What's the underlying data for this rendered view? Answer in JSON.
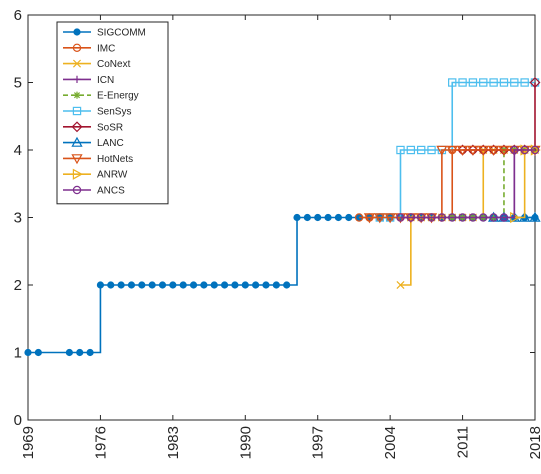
{
  "chart_data": {
    "type": "line",
    "title": "",
    "xlabel": "",
    "ylabel": "",
    "xlim": [
      1969,
      2018
    ],
    "ylim": [
      0,
      6
    ],
    "xticks": [
      "1969",
      "1976",
      "1983",
      "1990",
      "1997",
      "2004",
      "2011",
      "2018"
    ],
    "yticks": [
      "0",
      "1",
      "2",
      "3",
      "4",
      "5",
      "6"
    ],
    "legend_position": "top-left",
    "grid": false,
    "series": [
      {
        "name": "SIGCOMM",
        "color": "#0072BD",
        "marker": "circle",
        "step": true,
        "points": [
          [
            1969,
            1
          ],
          [
            1970,
            1
          ],
          [
            1973,
            1
          ],
          [
            1974,
            1
          ],
          [
            1975,
            1
          ],
          [
            1976,
            2
          ],
          [
            1977,
            2
          ],
          [
            1978,
            2
          ],
          [
            1979,
            2
          ],
          [
            1980,
            2
          ],
          [
            1981,
            2
          ],
          [
            1982,
            2
          ],
          [
            1983,
            2
          ],
          [
            1984,
            2
          ],
          [
            1985,
            2
          ],
          [
            1986,
            2
          ],
          [
            1987,
            2
          ],
          [
            1988,
            2
          ],
          [
            1989,
            2
          ],
          [
            1990,
            2
          ],
          [
            1991,
            2
          ],
          [
            1992,
            2
          ],
          [
            1993,
            2
          ],
          [
            1994,
            2
          ],
          [
            1995,
            3
          ],
          [
            1996,
            3
          ],
          [
            1997,
            3
          ],
          [
            1998,
            3
          ],
          [
            1999,
            3
          ],
          [
            2000,
            3
          ],
          [
            2001,
            3
          ],
          [
            2002,
            3
          ],
          [
            2003,
            3
          ],
          [
            2004,
            3
          ],
          [
            2005,
            3
          ],
          [
            2006,
            3
          ],
          [
            2007,
            3
          ],
          [
            2008,
            3
          ],
          [
            2009,
            3
          ],
          [
            2010,
            3
          ],
          [
            2011,
            3
          ],
          [
            2012,
            3
          ],
          [
            2013,
            3
          ],
          [
            2014,
            3
          ],
          [
            2015,
            3
          ],
          [
            2016,
            3
          ],
          [
            2017,
            3
          ],
          [
            2018,
            3
          ]
        ]
      },
      {
        "name": "IMC",
        "color": "#D95319",
        "marker": "circle-open",
        "step": true,
        "points": [
          [
            2001,
            3
          ],
          [
            2002,
            3
          ],
          [
            2003,
            3
          ],
          [
            2004,
            3
          ],
          [
            2005,
            3
          ],
          [
            2006,
            3
          ],
          [
            2007,
            3
          ],
          [
            2008,
            3
          ],
          [
            2009,
            3
          ],
          [
            2010,
            4
          ],
          [
            2011,
            4
          ],
          [
            2012,
            4
          ],
          [
            2013,
            4
          ],
          [
            2014,
            4
          ],
          [
            2015,
            4
          ],
          [
            2016,
            4
          ],
          [
            2017,
            4
          ],
          [
            2018,
            4
          ]
        ]
      },
      {
        "name": "CoNext",
        "color": "#EDB120",
        "marker": "x",
        "step": true,
        "points": [
          [
            2005,
            2
          ],
          [
            2006,
            3
          ],
          [
            2007,
            3
          ],
          [
            2008,
            3
          ],
          [
            2009,
            3
          ],
          [
            2010,
            3
          ],
          [
            2011,
            3
          ],
          [
            2012,
            3
          ],
          [
            2013,
            4
          ],
          [
            2014,
            4
          ],
          [
            2015,
            4
          ],
          [
            2016,
            4
          ],
          [
            2017,
            4
          ],
          [
            2018,
            4
          ]
        ]
      },
      {
        "name": "ICN",
        "color": "#7E2F8E",
        "marker": "plus",
        "step": true,
        "points": [
          [
            2011,
            3
          ],
          [
            2012,
            3
          ],
          [
            2013,
            3
          ],
          [
            2014,
            3
          ],
          [
            2015,
            3
          ],
          [
            2016,
            4
          ],
          [
            2017,
            4
          ],
          [
            2018,
            4
          ]
        ]
      },
      {
        "name": "E-Energy",
        "color": "#77AC30",
        "marker": "asterisk",
        "dashed": true,
        "step": true,
        "points": [
          [
            2010,
            3
          ],
          [
            2011,
            3
          ],
          [
            2012,
            3
          ],
          [
            2013,
            3
          ],
          [
            2014,
            3
          ],
          [
            2015,
            4
          ],
          [
            2016,
            4
          ],
          [
            2017,
            4
          ],
          [
            2018,
            4
          ]
        ]
      },
      {
        "name": "SenSys",
        "color": "#4DBEEE",
        "marker": "square",
        "step": true,
        "points": [
          [
            2003,
            3
          ],
          [
            2004,
            3
          ],
          [
            2005,
            4
          ],
          [
            2006,
            4
          ],
          [
            2007,
            4
          ],
          [
            2008,
            4
          ],
          [
            2009,
            4
          ],
          [
            2010,
            5
          ],
          [
            2011,
            5
          ],
          [
            2012,
            5
          ],
          [
            2013,
            5
          ],
          [
            2014,
            5
          ],
          [
            2015,
            5
          ],
          [
            2016,
            5
          ],
          [
            2017,
            5
          ],
          [
            2018,
            5
          ]
        ]
      },
      {
        "name": "SoSR",
        "color": "#A2142F",
        "marker": "diamond",
        "step": true,
        "points": [
          [
            2011,
            4
          ],
          [
            2012,
            4
          ],
          [
            2013,
            4
          ],
          [
            2014,
            4
          ],
          [
            2015,
            4
          ],
          [
            2016,
            4
          ],
          [
            2017,
            4
          ],
          [
            2018,
            5
          ]
        ]
      },
      {
        "name": "LANC",
        "color": "#0072BD",
        "marker": "triangle-up",
        "step": true,
        "points": [
          [
            2014,
            3
          ],
          [
            2015,
            3
          ],
          [
            2016,
            3
          ],
          [
            2017,
            3
          ],
          [
            2018,
            3
          ]
        ]
      },
      {
        "name": "HotNets",
        "color": "#D95319",
        "marker": "triangle-down",
        "step": true,
        "points": [
          [
            2002,
            3
          ],
          [
            2003,
            3
          ],
          [
            2004,
            3
          ],
          [
            2005,
            3
          ],
          [
            2006,
            3
          ],
          [
            2007,
            3
          ],
          [
            2008,
            3
          ],
          [
            2009,
            4
          ],
          [
            2010,
            4
          ],
          [
            2011,
            4
          ],
          [
            2012,
            4
          ],
          [
            2013,
            4
          ],
          [
            2014,
            4
          ],
          [
            2015,
            4
          ],
          [
            2016,
            4
          ],
          [
            2017,
            4
          ],
          [
            2018,
            4
          ]
        ]
      },
      {
        "name": "ANRW",
        "color": "#EDB120",
        "marker": "triangle-right",
        "step": true,
        "points": [
          [
            2016,
            3
          ],
          [
            2017,
            4
          ],
          [
            2018,
            4
          ]
        ]
      },
      {
        "name": "ANCS",
        "color": "#7E2F8E",
        "marker": "circle-open",
        "step": true,
        "points": [
          [
            2005,
            3
          ],
          [
            2006,
            3
          ],
          [
            2007,
            3
          ],
          [
            2008,
            3
          ],
          [
            2009,
            3
          ],
          [
            2010,
            3
          ],
          [
            2011,
            3
          ],
          [
            2012,
            3
          ],
          [
            2013,
            3
          ],
          [
            2014,
            3
          ],
          [
            2015,
            3
          ],
          [
            2016,
            4
          ],
          [
            2017,
            4
          ],
          [
            2018,
            4
          ]
        ]
      }
    ]
  }
}
